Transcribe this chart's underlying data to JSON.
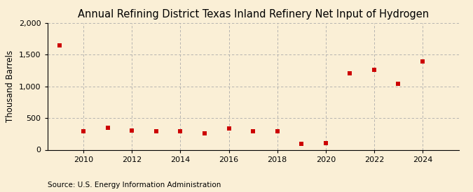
{
  "title": "Annual Refining District Texas Inland Refinery Net Input of Hydrogen",
  "ylabel": "Thousand Barrels",
  "source": "Source: U.S. Energy Information Administration",
  "background_color": "#faefd6",
  "plot_bg_color": "#faefd6",
  "grid_color": "#aaaaaa",
  "marker_color": "#cc0000",
  "years": [
    2009,
    2010,
    2011,
    2012,
    2013,
    2014,
    2015,
    2016,
    2017,
    2018,
    2019,
    2020,
    2021,
    2022,
    2023,
    2024
  ],
  "values": [
    1650,
    290,
    350,
    305,
    295,
    295,
    255,
    335,
    290,
    295,
    90,
    110,
    1210,
    1265,
    1040,
    1390
  ],
  "ylim": [
    0,
    2000
  ],
  "yticks": [
    0,
    500,
    1000,
    1500,
    2000
  ],
  "xlim": [
    2008.5,
    2025.5
  ],
  "xticks": [
    2010,
    2012,
    2014,
    2016,
    2018,
    2020,
    2022,
    2024
  ],
  "title_fontsize": 10.5,
  "label_fontsize": 8.5,
  "tick_fontsize": 8,
  "source_fontsize": 7.5
}
